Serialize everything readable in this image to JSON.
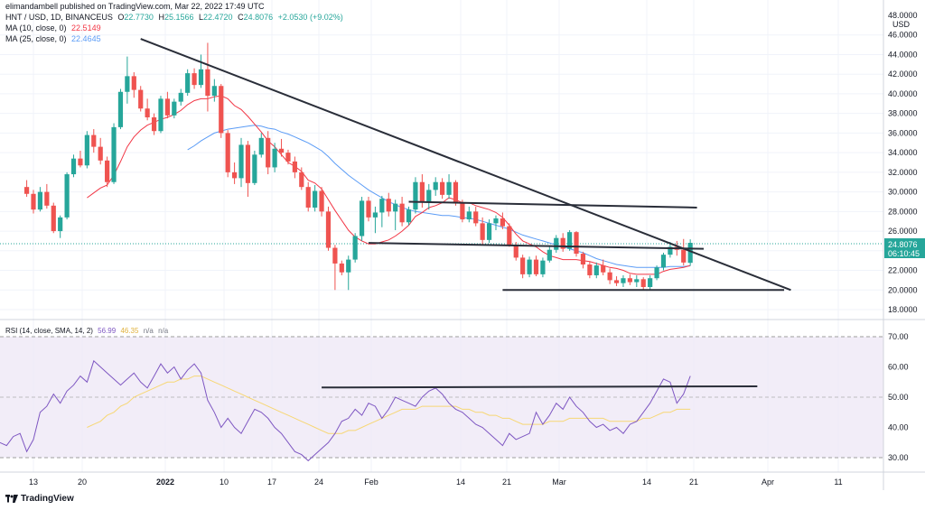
{
  "header": {
    "published": "elimandambell published on TradingView.com, Mar 22, 2022 17:49 UTC"
  },
  "legend": {
    "symbol": "HNT / USD, 1D, BINANCEUS",
    "open_label": "O",
    "open": "22.7730",
    "high_label": "H",
    "high": "25.1566",
    "low_label": "L",
    "low": "22.4720",
    "close_label": "C",
    "close": "24.8076",
    "change": "+2.0530 (+9.02%)",
    "ma10_label": "MA (10, close, 0)",
    "ma10_value": "22.5149",
    "ma25_label": "MA (25, close, 0)",
    "ma25_value": "22.4645"
  },
  "rsi_legend": {
    "label": "RSI (14, close, SMA, 14, 2)",
    "rsi": "56.99",
    "sma": "46.35",
    "na1": "n/a",
    "na2": "n/a"
  },
  "price_axis": {
    "unit_top": "48.0000",
    "currency": "USD",
    "ticks": [
      "46.0000",
      "44.0000",
      "42.0000",
      "40.0000",
      "38.0000",
      "36.0000",
      "34.0000",
      "32.0000",
      "30.0000",
      "28.0000",
      "26.0000",
      "22.0000",
      "20.0000",
      "18.0000"
    ],
    "last_price": "24.8076",
    "countdown": "06:10:45"
  },
  "rsi_axis": {
    "ticks": [
      "70.00",
      "60.00",
      "50.00",
      "40.00",
      "30.00"
    ]
  },
  "time_axis": [
    "13",
    "20",
    "2022",
    "10",
    "17",
    "24",
    "Feb",
    "14",
    "21",
    "Mar",
    "14",
    "21",
    "Apr",
    "11"
  ],
  "brand": "TradingView",
  "colors": {
    "up": "#26a69a",
    "down": "#ef5350",
    "ma10": "#f23645",
    "ma25": "#5b9cf6",
    "rsi": "#7e57c2",
    "rsi_sma": "#f7d774",
    "rsi_band": "#ede7f6",
    "trendline": "#2a2e39"
  },
  "chart_data": {
    "type": "candlestick",
    "symbol": "HNT / USD",
    "interval": "1D",
    "y_range": [
      17,
      48
    ],
    "last": {
      "open": 22.773,
      "high": 25.1566,
      "low": 22.472,
      "close": 24.8076
    },
    "candles": [
      [
        30.5,
        31.2,
        29.5,
        29.8
      ],
      [
        29.8,
        30.2,
        27.8,
        28.2
      ],
      [
        28.2,
        30.5,
        28.0,
        30.0
      ],
      [
        30.0,
        30.8,
        28.3,
        28.6
      ],
      [
        28.6,
        28.9,
        25.8,
        26.0
      ],
      [
        26.0,
        27.6,
        25.3,
        27.4
      ],
      [
        27.4,
        32.0,
        27.2,
        31.8
      ],
      [
        31.8,
        33.8,
        31.5,
        33.4
      ],
      [
        33.4,
        34.2,
        32.5,
        32.7
      ],
      [
        32.7,
        36.2,
        32.4,
        35.8
      ],
      [
        35.8,
        36.4,
        34.0,
        34.6
      ],
      [
        34.6,
        35.5,
        32.8,
        33.2
      ],
      [
        33.2,
        33.6,
        30.5,
        31.0
      ],
      [
        31.0,
        37.0,
        30.8,
        36.6
      ],
      [
        36.6,
        40.5,
        36.4,
        40.2
      ],
      [
        40.2,
        43.8,
        39.0,
        41.8
      ],
      [
        41.8,
        42.2,
        39.6,
        40.4
      ],
      [
        40.4,
        40.8,
        38.2,
        38.5
      ],
      [
        38.5,
        39.5,
        37.3,
        37.6
      ],
      [
        37.6,
        38.0,
        35.8,
        36.2
      ],
      [
        36.2,
        39.8,
        36.0,
        39.5
      ],
      [
        39.5,
        40.2,
        37.5,
        37.8
      ],
      [
        37.8,
        39.5,
        37.5,
        39.2
      ],
      [
        39.2,
        40.5,
        38.8,
        40.1
      ],
      [
        40.1,
        42.5,
        39.8,
        42.1
      ],
      [
        42.1,
        42.6,
        40.5,
        40.9
      ],
      [
        40.9,
        44.0,
        40.6,
        42.5
      ],
      [
        42.5,
        45.2,
        38.2,
        39.8
      ],
      [
        39.8,
        41.5,
        39.2,
        40.8
      ],
      [
        40.8,
        41.0,
        35.5,
        36.0
      ],
      [
        36.0,
        36.3,
        31.5,
        32.0
      ],
      [
        32.0,
        33.0,
        30.8,
        31.4
      ],
      [
        31.4,
        35.5,
        30.5,
        34.8
      ],
      [
        34.8,
        35.2,
        29.5,
        30.9
      ],
      [
        30.9,
        34.2,
        30.7,
        33.8
      ],
      [
        33.8,
        36.0,
        33.5,
        35.5
      ],
      [
        35.5,
        36.2,
        31.8,
        32.5
      ],
      [
        32.5,
        35.0,
        32.0,
        34.4
      ],
      [
        34.4,
        35.4,
        33.6,
        34.0
      ],
      [
        34.0,
        34.3,
        32.8,
        33.1
      ],
      [
        33.1,
        33.6,
        31.4,
        32.0
      ],
      [
        32.0,
        32.5,
        30.2,
        30.5
      ],
      [
        30.5,
        31.0,
        28.0,
        28.4
      ],
      [
        28.4,
        30.7,
        28.0,
        30.1
      ],
      [
        30.1,
        30.5,
        27.5,
        28.0
      ],
      [
        28.0,
        28.5,
        24.0,
        24.3
      ],
      [
        24.3,
        24.6,
        20.0,
        22.7
      ],
      [
        22.7,
        23.0,
        21.5,
        21.8
      ],
      [
        21.8,
        23.5,
        20.0,
        23.1
      ],
      [
        23.1,
        25.8,
        22.8,
        25.5
      ],
      [
        25.5,
        29.5,
        25.0,
        29.1
      ],
      [
        29.1,
        29.5,
        27.0,
        27.4
      ],
      [
        27.4,
        28.5,
        25.8,
        27.9
      ],
      [
        27.9,
        29.6,
        26.4,
        29.3
      ],
      [
        29.3,
        29.9,
        27.5,
        28.0
      ],
      [
        28.0,
        29.2,
        26.1,
        28.8
      ],
      [
        28.8,
        29.5,
        26.5,
        26.9
      ],
      [
        26.9,
        28.5,
        26.6,
        28.2
      ],
      [
        28.2,
        31.5,
        27.8,
        31.0
      ],
      [
        31.0,
        31.8,
        28.4,
        29.0
      ],
      [
        29.0,
        30.8,
        28.2,
        30.2
      ],
      [
        30.2,
        31.5,
        29.6,
        31.0
      ],
      [
        31.0,
        31.4,
        29.3,
        29.7
      ],
      [
        29.7,
        31.8,
        29.3,
        31.0
      ],
      [
        31.0,
        31.2,
        28.6,
        28.9
      ],
      [
        28.9,
        29.2,
        26.9,
        27.2
      ],
      [
        27.2,
        28.5,
        26.9,
        28.0
      ],
      [
        28.0,
        28.5,
        26.5,
        26.8
      ],
      [
        26.8,
        27.4,
        24.6,
        25.1
      ],
      [
        25.1,
        27.2,
        24.8,
        26.8
      ],
      [
        26.8,
        27.6,
        26.1,
        27.3
      ],
      [
        27.3,
        27.9,
        26.2,
        26.5
      ],
      [
        26.5,
        26.8,
        24.4,
        24.6
      ],
      [
        24.6,
        24.9,
        23.0,
        23.3
      ],
      [
        23.3,
        23.6,
        21.2,
        21.6
      ],
      [
        21.6,
        23.4,
        21.3,
        23.1
      ],
      [
        23.1,
        23.5,
        21.4,
        21.6
      ],
      [
        21.6,
        23.3,
        21.3,
        23.0
      ],
      [
        23.0,
        24.5,
        22.8,
        24.1
      ],
      [
        24.1,
        25.6,
        23.8,
        25.3
      ],
      [
        25.3,
        25.8,
        23.9,
        24.2
      ],
      [
        24.2,
        26.1,
        24.0,
        25.9
      ],
      [
        25.9,
        26.0,
        23.4,
        23.7
      ],
      [
        23.7,
        23.9,
        22.2,
        22.6
      ],
      [
        22.6,
        22.9,
        21.2,
        21.5
      ],
      [
        21.5,
        22.8,
        21.2,
        22.5
      ],
      [
        22.5,
        23.1,
        21.5,
        21.8
      ],
      [
        21.8,
        22.2,
        20.6,
        21.0
      ],
      [
        21.0,
        21.4,
        20.4,
        20.7
      ],
      [
        20.7,
        21.5,
        20.3,
        21.2
      ],
      [
        21.2,
        21.6,
        20.5,
        20.8
      ],
      [
        20.8,
        21.5,
        20.3,
        21.1
      ],
      [
        21.1,
        21.3,
        20.0,
        20.3
      ],
      [
        20.3,
        21.5,
        20.0,
        21.2
      ],
      [
        21.2,
        22.5,
        21.0,
        22.3
      ],
      [
        22.3,
        23.8,
        22.0,
        23.6
      ],
      [
        23.6,
        24.9,
        23.3,
        24.4
      ],
      [
        24.4,
        25.0,
        23.5,
        24.1
      ],
      [
        24.1,
        25.2,
        22.5,
        22.8
      ],
      [
        22.77,
        25.16,
        22.47,
        24.81
      ]
    ],
    "moving_averages": [
      {
        "name": "MA (10, close, 0)",
        "last": 22.5149,
        "values": [
          null,
          null,
          null,
          null,
          null,
          null,
          null,
          null,
          null,
          29.4,
          29.9,
          30.4,
          30.7,
          31.7,
          33.1,
          34.6,
          35.6,
          36.3,
          36.8,
          37.1,
          37.4,
          37.6,
          37.9,
          38.3,
          38.9,
          39.3,
          39.5,
          39.5,
          39.7,
          39.8,
          39.5,
          38.8,
          38.4,
          37.7,
          36.9,
          36.1,
          35.2,
          34.6,
          33.8,
          33.0,
          32.6,
          32.1,
          31.2,
          30.9,
          30.3,
          29.2,
          28.1,
          27.1,
          26.1,
          25.4,
          25.0,
          24.7,
          24.7,
          24.9,
          25.1,
          25.5,
          26.0,
          26.6,
          27.5,
          27.9,
          28.4,
          28.6,
          28.9,
          29.4,
          29.2,
          28.9,
          28.9,
          28.6,
          28.4,
          28.2,
          27.9,
          27.4,
          26.6,
          25.7,
          25.0,
          24.7,
          24.4,
          23.9,
          23.5,
          23.3,
          23.1,
          23.1,
          23.1,
          23.0,
          22.9,
          22.7,
          22.5,
          22.3,
          22.2,
          22.0,
          21.7,
          21.6,
          21.6,
          21.6,
          21.6,
          21.9,
          22.1,
          22.2,
          22.3,
          22.5
        ]
      },
      {
        "name": "MA (25, close, 0)",
        "last": 22.4645,
        "values": [
          null,
          null,
          null,
          null,
          null,
          null,
          null,
          null,
          null,
          null,
          null,
          null,
          null,
          null,
          null,
          null,
          null,
          null,
          null,
          null,
          null,
          null,
          null,
          null,
          34.3,
          34.7,
          35.2,
          35.6,
          36.0,
          36.2,
          36.4,
          36.5,
          36.6,
          36.7,
          36.8,
          36.7,
          36.5,
          36.4,
          36.1,
          35.9,
          35.6,
          35.3,
          35.0,
          34.6,
          34.2,
          33.6,
          32.9,
          32.3,
          31.7,
          31.2,
          30.7,
          30.2,
          29.8,
          29.4,
          29.0,
          28.7,
          28.4,
          28.2,
          28.0,
          27.9,
          27.8,
          27.7,
          27.6,
          27.6,
          27.5,
          27.4,
          27.3,
          27.2,
          27.0,
          26.8,
          26.6,
          26.4,
          26.2,
          25.9,
          25.6,
          25.4,
          25.2,
          25.0,
          24.8,
          24.6,
          24.4,
          24.2,
          24.0,
          23.8,
          23.5,
          23.2,
          23.0,
          22.8,
          22.6,
          22.5,
          22.4,
          22.3,
          22.3,
          22.3,
          22.3,
          22.3,
          22.4,
          22.4,
          22.4,
          22.46
        ]
      }
    ],
    "rsi": {
      "name": "RSI (14, close, SMA, 14, 2)",
      "last": 56.99,
      "sma_last": 46.35,
      "y_range": [
        28,
        72
      ],
      "bands": [
        30,
        50,
        70
      ],
      "values": [
        35,
        34,
        37,
        38,
        32,
        36,
        45,
        47,
        51,
        48,
        52,
        54,
        57,
        55,
        62,
        60,
        58,
        56,
        54,
        56,
        58,
        55,
        53,
        57,
        61,
        58,
        60,
        56,
        59,
        61,
        58,
        49,
        45,
        40,
        43,
        40,
        38,
        42,
        46,
        45,
        43,
        40,
        38,
        35,
        32,
        31,
        29,
        31,
        33,
        35,
        38,
        42,
        43,
        46,
        44,
        48,
        47,
        43,
        46,
        50,
        49,
        48,
        47,
        50,
        52,
        53,
        51,
        48,
        46,
        45,
        43,
        41,
        40,
        38,
        36,
        34,
        38,
        36,
        37,
        38,
        45,
        41,
        44,
        48,
        46,
        50,
        47,
        45,
        42,
        40,
        41,
        39,
        40,
        38,
        41,
        42,
        45,
        48,
        52,
        56,
        55,
        48,
        51,
        57
      ],
      "sma": [
        null,
        null,
        null,
        null,
        null,
        null,
        null,
        null,
        null,
        null,
        null,
        null,
        null,
        40,
        41,
        42,
        44,
        45,
        47,
        48,
        50,
        51,
        52,
        53,
        54,
        55,
        55,
        56,
        56,
        57,
        57,
        56,
        55,
        54,
        53,
        52,
        51,
        50,
        49,
        48,
        47,
        46,
        45,
        44,
        43,
        42,
        41,
        40,
        39,
        38,
        38,
        38,
        39,
        39,
        40,
        41,
        42,
        43,
        44,
        45,
        46,
        46,
        46,
        47,
        47,
        47,
        47,
        47,
        47,
        46,
        46,
        45,
        45,
        44,
        44,
        43,
        43,
        42,
        41,
        41,
        41,
        41,
        42,
        42,
        42,
        43,
        43,
        43,
        43,
        43,
        43,
        42,
        42,
        42,
        42,
        42,
        43,
        43,
        44,
        45,
        45,
        46,
        46,
        46
      ]
    },
    "trendlines": [
      {
        "name": "descending-resistance",
        "from": [
          "2021-12-29",
          45.6
        ],
        "to": [
          "2022-04-05",
          20.0
        ]
      },
      {
        "name": "upper-horizontal",
        "from": [
          "2022-02-07",
          29.0
        ],
        "to": [
          "2022-03-22",
          28.4
        ]
      },
      {
        "name": "middle-support",
        "from": [
          "2022-02-01",
          24.8
        ],
        "to": [
          "2022-03-23",
          24.2
        ]
      },
      {
        "name": "lower-support",
        "from": [
          "2022-02-21",
          20.0
        ],
        "to": [
          "2022-04-04",
          20.0
        ]
      },
      {
        "name": "rsi-resistance",
        "from": [
          "2022-01-25",
          53.2
        ],
        "to": [
          "2022-03-31",
          53.6
        ]
      }
    ]
  }
}
